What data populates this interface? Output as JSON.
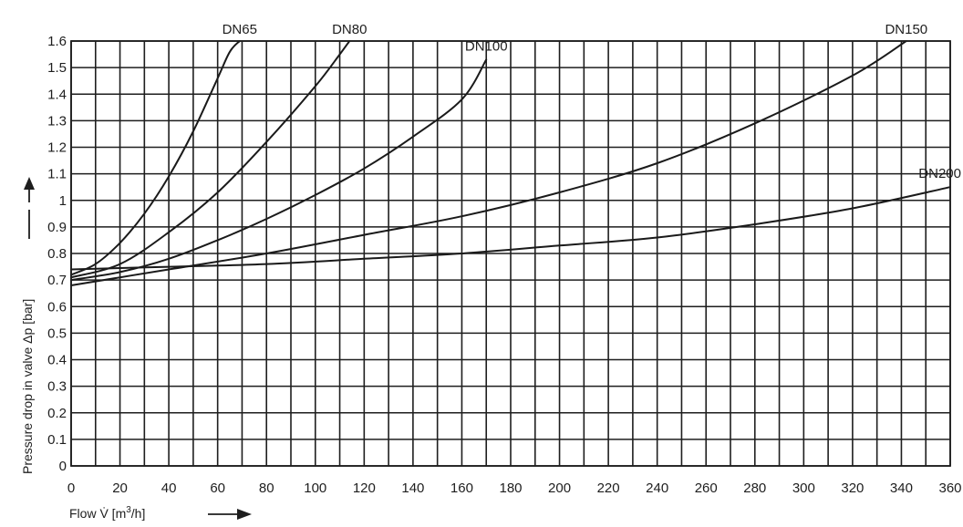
{
  "chart_data": {
    "type": "line",
    "title": "",
    "xlabel_prefix": "Flow V̇ [m",
    "xlabel_sup": "3",
    "xlabel_suffix": "/h]",
    "ylabel": "Pressure drop in valve Δp [bar]",
    "xlim": [
      0,
      360
    ],
    "ylim": [
      0,
      1.6
    ],
    "grid": true,
    "x_ticks": [
      "0",
      "20",
      "40",
      "60",
      "80",
      "100",
      "120",
      "140",
      "160",
      "180",
      "200",
      "220",
      "240",
      "260",
      "280",
      "300",
      "320",
      "340",
      "360"
    ],
    "y_ticks": [
      "0",
      "0.1",
      "0.2",
      "0.3",
      "0.4",
      "0.5",
      "0.6",
      "0.7",
      "0.8",
      "0.9",
      "1",
      "1.1",
      "1.2",
      "1.3",
      "1.4",
      "1.5",
      "1.6"
    ],
    "series": [
      {
        "name": "DN65",
        "x": [
          0,
          10,
          20,
          30,
          40,
          50,
          60,
          65,
          69
        ],
        "y": [
          0.72,
          0.76,
          0.84,
          0.95,
          1.09,
          1.26,
          1.46,
          1.56,
          1.6
        ]
      },
      {
        "name": "DN80",
        "x": [
          0,
          20,
          40,
          60,
          80,
          100,
          110,
          114
        ],
        "y": [
          0.71,
          0.76,
          0.88,
          1.03,
          1.22,
          1.43,
          1.55,
          1.6
        ]
      },
      {
        "name": "DN100",
        "x": [
          0,
          20,
          40,
          60,
          80,
          100,
          120,
          140,
          160,
          170
        ],
        "y": [
          0.7,
          0.73,
          0.78,
          0.85,
          0.93,
          1.02,
          1.12,
          1.24,
          1.38,
          1.53
        ]
      },
      {
        "name": "DN150",
        "x": [
          0,
          40,
          80,
          120,
          160,
          200,
          240,
          280,
          320,
          342
        ],
        "y": [
          0.68,
          0.74,
          0.8,
          0.87,
          0.94,
          1.03,
          1.14,
          1.29,
          1.47,
          1.6
        ]
      },
      {
        "name": "DN200",
        "x": [
          0,
          40,
          80,
          120,
          160,
          200,
          240,
          280,
          320,
          360
        ],
        "y": [
          0.74,
          0.75,
          0.76,
          0.78,
          0.8,
          0.83,
          0.86,
          0.91,
          0.97,
          1.05
        ]
      }
    ]
  }
}
